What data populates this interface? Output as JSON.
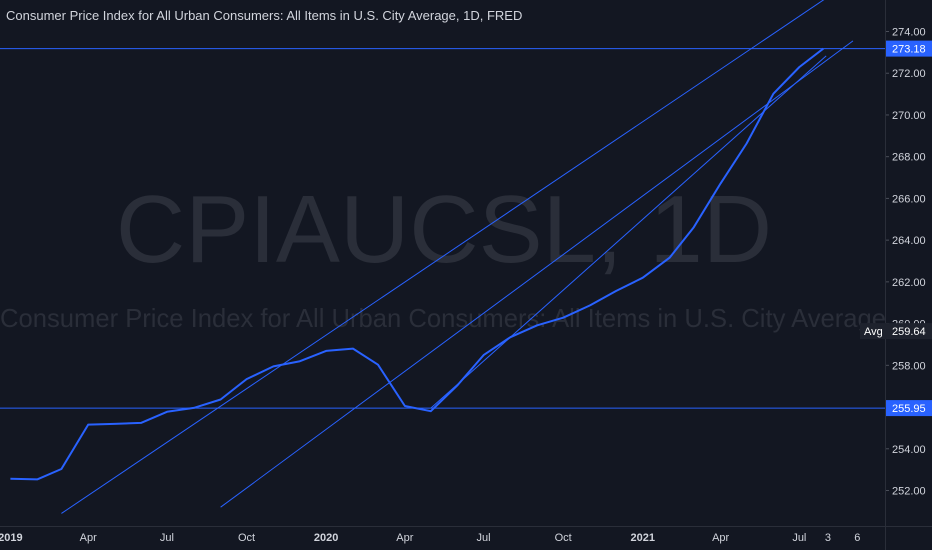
{
  "chart": {
    "title": "Consumer Price Index for All Urban Consumers: All Items in U.S. City Average, 1D, FRED",
    "watermark_symbol": "CPIAUCSL, 1D",
    "watermark_name": "Consumer Price Index for All Urban Consumers: All Items in U.S. City Average",
    "colors": {
      "background": "#131722",
      "line": "#2962ff",
      "text": "#d1d4dc",
      "watermark": "#2a2e39",
      "badge_blue": "#2962ff",
      "badge_dark": "#1e222d"
    },
    "price_badges": [
      {
        "label": "",
        "value": "273.18",
        "style": "blue"
      },
      {
        "label": "Avg",
        "value": "259.64",
        "style": "dark"
      },
      {
        "label": "",
        "value": "255.95",
        "style": "blue"
      }
    ]
  },
  "chart_data": {
    "type": "line",
    "series": [
      {
        "x": [
          "2019-01-01",
          "2019-02-01",
          "2019-03-01",
          "2019-04-01",
          "2019-05-01",
          "2019-06-01",
          "2019-07-01",
          "2019-08-01",
          "2019-09-01",
          "2019-10-01",
          "2019-11-01",
          "2019-12-01",
          "2020-01-01",
          "2020-02-01",
          "2020-03-01",
          "2020-04-01",
          "2020-05-01",
          "2020-06-01",
          "2020-07-01",
          "2020-08-01",
          "2020-09-01",
          "2020-10-01",
          "2020-11-01",
          "2020-12-01",
          "2021-01-01",
          "2021-02-01",
          "2021-03-01",
          "2021-04-01",
          "2021-05-01",
          "2021-06-01",
          "2021-07-01"
        ],
        "values": [
          252.56,
          252.53,
          253.03,
          255.16,
          255.19,
          255.24,
          255.77,
          255.96,
          256.36,
          257.34,
          257.95,
          258.19,
          258.69,
          258.8,
          258.03,
          256.05,
          255.8,
          257.05,
          258.49,
          259.35,
          259.92,
          260.28,
          260.87,
          261.56,
          262.2,
          263.16,
          264.62,
          266.72,
          268.63,
          271.02,
          272.3
        ],
        "y_end": 273.18
      }
    ],
    "drawings": [
      {
        "type": "horizontal-line",
        "value": 273.18
      },
      {
        "type": "horizontal-line",
        "value": 255.95
      },
      {
        "type": "trend-line",
        "x1": "2019-03-01",
        "y1": 250.9,
        "x2": "2021-08-01",
        "y2": 275.6
      },
      {
        "type": "trend-line",
        "x1": "2019-09-01",
        "y1": 251.2,
        "x2": "2021-09-01",
        "y2": 273.55
      },
      {
        "type": "trend-line",
        "x1": "2020-05-01",
        "y1": 255.95,
        "x2": "2021-08-01",
        "y2": 272.83
      }
    ],
    "xticks": [
      {
        "label": "2019",
        "x": "2019-01-01",
        "bold": true
      },
      {
        "label": "Apr",
        "x": "2019-04-01",
        "bold": false
      },
      {
        "label": "Jul",
        "x": "2019-07-01",
        "bold": false
      },
      {
        "label": "Oct",
        "x": "2019-10-01",
        "bold": false
      },
      {
        "label": "2020",
        "x": "2020-01-01",
        "bold": true
      },
      {
        "label": "Apr",
        "x": "2020-04-01",
        "bold": false
      },
      {
        "label": "Jul",
        "x": "2020-07-01",
        "bold": false
      },
      {
        "label": "Oct",
        "x": "2020-10-01",
        "bold": false
      },
      {
        "label": "2021",
        "x": "2021-01-01",
        "bold": true
      },
      {
        "label": "Apr",
        "x": "2021-04-01",
        "bold": false
      },
      {
        "label": "Jul",
        "x": "2021-07-01",
        "bold": false
      },
      {
        "label": "3",
        "x": "2021-08-03",
        "bold": false
      },
      {
        "label": "6",
        "x": "2021-09-06",
        "bold": false
      }
    ],
    "yticks": [
      "252.00",
      "254.00",
      "256.00",
      "258.00",
      "260.00",
      "262.00",
      "264.00",
      "266.00",
      "268.00",
      "270.00",
      "272.00",
      "274.00"
    ],
    "ylim": [
      250.6,
      275.5
    ],
    "xlim": [
      "2018-12-20",
      "2021-10-08"
    ],
    "grid": false,
    "title": "Consumer Price Index for All Urban Consumers: All Items in U.S. City Average, 1D, FRED"
  }
}
